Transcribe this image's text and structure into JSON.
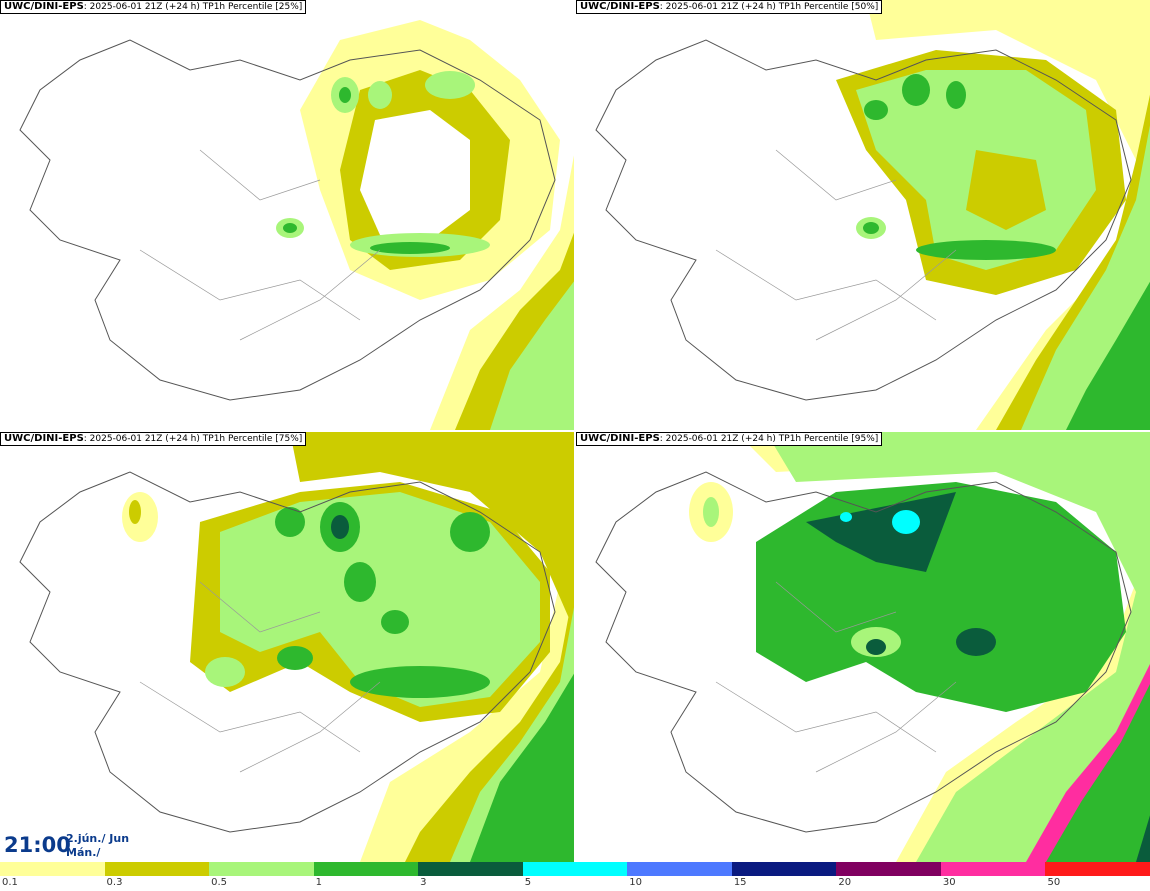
{
  "panels": [
    {
      "model": "UWC/DINI-EPS",
      "run": ": 2025-06-01 21Z (+24 h)",
      "param": "TP1h Percentile [25%]",
      "coverage": 0.25
    },
    {
      "model": "UWC/DINI-EPS",
      "run": ": 2025-06-01 21Z (+24 h)",
      "param": "TP1h Percentile [50%]",
      "coverage": 0.5
    },
    {
      "model": "UWC/DINI-EPS",
      "run": ": 2025-06-01 21Z (+24 h)",
      "param": "TP1h Percentile [75%]",
      "coverage": 0.75
    },
    {
      "model": "UWC/DINI-EPS",
      "run": ": 2025-06-01 21Z (+24 h)",
      "param": "TP1h Percentile [95%]",
      "coverage": 0.95
    }
  ],
  "time": {
    "clock": "21:00",
    "date_line1": "2.jún./ Jun",
    "date_line2": "Mán./ Mon"
  },
  "legend": {
    "colors": [
      "#ffff99",
      "#cccc00",
      "#a8f57a",
      "#2eb82e",
      "#0a5c3c",
      "#00ffff",
      "#4d79ff",
      "#0a1a80",
      "#800060",
      "#ff2da0",
      "#ff1a1a"
    ],
    "labels": [
      "0.1",
      "0.3",
      "0.5",
      "1",
      "3",
      "5",
      "10",
      "15",
      "20",
      "30",
      "50"
    ]
  }
}
